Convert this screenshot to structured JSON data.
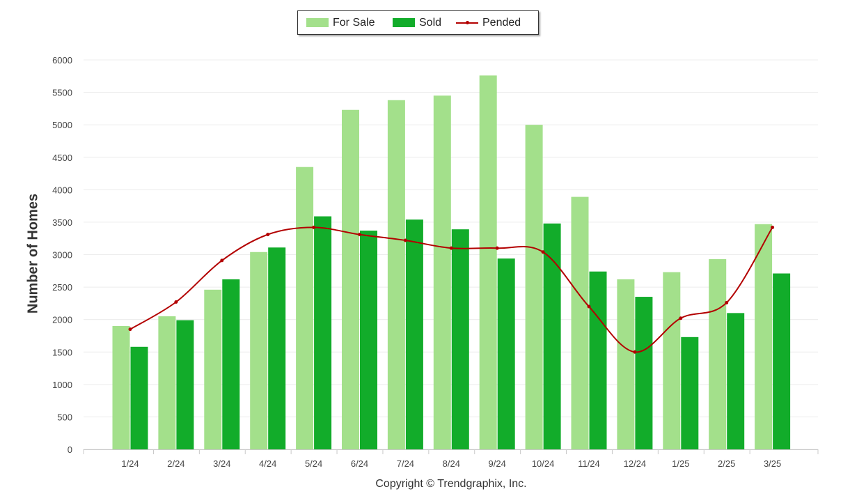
{
  "chart_data": {
    "type": "bar",
    "ylabel": "Number of Homes",
    "ylim": [
      0,
      6000
    ],
    "yticks": [
      "0",
      "500",
      "1000",
      "1500",
      "2000",
      "2500",
      "3000",
      "3500",
      "4000",
      "4500",
      "5000",
      "5500",
      "6000"
    ],
    "categories": [
      "1/24",
      "2/24",
      "3/24",
      "4/24",
      "5/24",
      "6/24",
      "7/24",
      "8/24",
      "9/24",
      "10/24",
      "11/24",
      "12/24",
      "1/25",
      "2/25",
      "3/25"
    ],
    "series": [
      {
        "name": "For Sale",
        "type": "bar",
        "color": "#a3e08b",
        "values": [
          1900,
          2050,
          2460,
          3040,
          4350,
          5230,
          5380,
          5450,
          5760,
          5000,
          3890,
          2620,
          2730,
          2930,
          3470
        ]
      },
      {
        "name": "Sold",
        "type": "bar",
        "color": "#12ac2a",
        "values": [
          1580,
          1990,
          2620,
          3110,
          3590,
          3370,
          3540,
          3390,
          2940,
          3480,
          2740,
          2350,
          1730,
          2100,
          2710
        ]
      },
      {
        "name": "Pended",
        "type": "line",
        "color": "#b30000",
        "values": [
          1850,
          2270,
          2910,
          3310,
          3420,
          3310,
          3220,
          3100,
          3100,
          3040,
          2200,
          1500,
          2020,
          2260,
          3420
        ]
      }
    ],
    "legend_position": "top-center",
    "grid": true
  },
  "footer": {
    "copyright": "Copyright © Trendgraphix, Inc."
  }
}
